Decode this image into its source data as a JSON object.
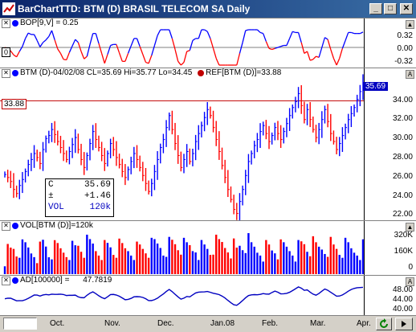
{
  "window": {
    "title": "BarChartTTD: BTM (D) BRASIL TELECOM SA Daily",
    "min_label": "_",
    "max_label": "□",
    "close_label": "✕"
  },
  "panes": {
    "bop": {
      "close": "✕",
      "label": "BOP[9,V] = 0.25",
      "ticks": [
        "0.32",
        "0.00",
        "-0.32"
      ],
      "zero_label": "0",
      "scroll_label": "▲"
    },
    "price": {
      "close": "✕",
      "label": "BTM (D)-04/02/08 CL=35.69 Hi=35.77 Lo=34.45",
      "ref_label": "REF[BTM (D)]=33.88",
      "ref_value_label": "33.88",
      "last_price": "35.69",
      "ticks": [
        "34.00",
        "32.00",
        "30.00",
        "28.00",
        "26.00",
        "24.00",
        "22.00"
      ],
      "scroll_label": "A"
    },
    "vol": {
      "close": "✕",
      "label": "VOL[BTM (D)]=120k",
      "ticks": [
        "320K",
        "160K",
        "0"
      ],
      "scroll_label": "▲"
    },
    "ad": {
      "close": "✕",
      "label": "AD[100000] =",
      "value": "47.7819",
      "ticks": [
        "48.00",
        "44.00",
        "40.00"
      ],
      "scroll_label": "A"
    }
  },
  "infobox": {
    "c_label": "C",
    "c_value": "35.69",
    "chg_label": "±",
    "chg_value": "+1.46",
    "vol_label": "VOL",
    "vol_value": "120k"
  },
  "months": [
    "Oct.",
    "Nov.",
    "Dec.",
    "Jan.08",
    "Feb.",
    "Mar.",
    "Apr."
  ],
  "colors": {
    "up": "#0000ff",
    "down": "#ff0000",
    "ref_line": "#c00000",
    "ad_line": "#0000c0"
  },
  "chart_data": {
    "type": "bar",
    "series_description_values": [
      {
        "name": "BTM (D)",
        "close": [
          26.5,
          26.2,
          25.8,
          25.0,
          24.6,
          25.4,
          26.0,
          26.8,
          27.5,
          28.0,
          28.6,
          28.2,
          27.6,
          29.0,
          30.1,
          30.4,
          31.0,
          30.5,
          29.8,
          29.2,
          28.6,
          28.0,
          28.8,
          29.5,
          30.2,
          29.0,
          28.0,
          27.2,
          28.4,
          29.6,
          30.8,
          30.0,
          29.2,
          28.4,
          27.6,
          28.6,
          29.6,
          29.0,
          28.2,
          27.5,
          26.8,
          26.2,
          27.0,
          27.8,
          28.6,
          28.0,
          27.2,
          26.4,
          25.6,
          24.8,
          25.6,
          26.8,
          28.0,
          29.2,
          30.0,
          31.2,
          32.4,
          31.0,
          29.6,
          28.4,
          27.2,
          28.0,
          28.8,
          27.8,
          28.6,
          29.8,
          30.6,
          31.4,
          32.2,
          33.0,
          32.4,
          31.2,
          30.0,
          28.8,
          27.4,
          26.2,
          25.0,
          24.0,
          23.0,
          22.6,
          23.8,
          25.0,
          26.4,
          27.8,
          28.6,
          29.4,
          30.0,
          30.8,
          31.4,
          30.6,
          29.8,
          30.4,
          31.2,
          30.6,
          30.0,
          30.8,
          31.6,
          32.4,
          33.2,
          33.8,
          34.6,
          33.4,
          32.0,
          33.0,
          32.0,
          31.0,
          30.2,
          31.0,
          32.0,
          33.0,
          31.8,
          30.6,
          29.8,
          29.0,
          29.6,
          30.4,
          31.2,
          32.0,
          32.6,
          33.2,
          34.0,
          34.8,
          35.69
        ]
      },
      {
        "name": "REF",
        "value": 33.88
      }
    ],
    "bop_range": [
      -0.32,
      0.32
    ],
    "price_range": [
      22.0,
      36.0
    ],
    "vol_range": [
      0,
      320000
    ],
    "ad_range": [
      38.0,
      50.0
    ],
    "ad_last": 47.7819
  }
}
